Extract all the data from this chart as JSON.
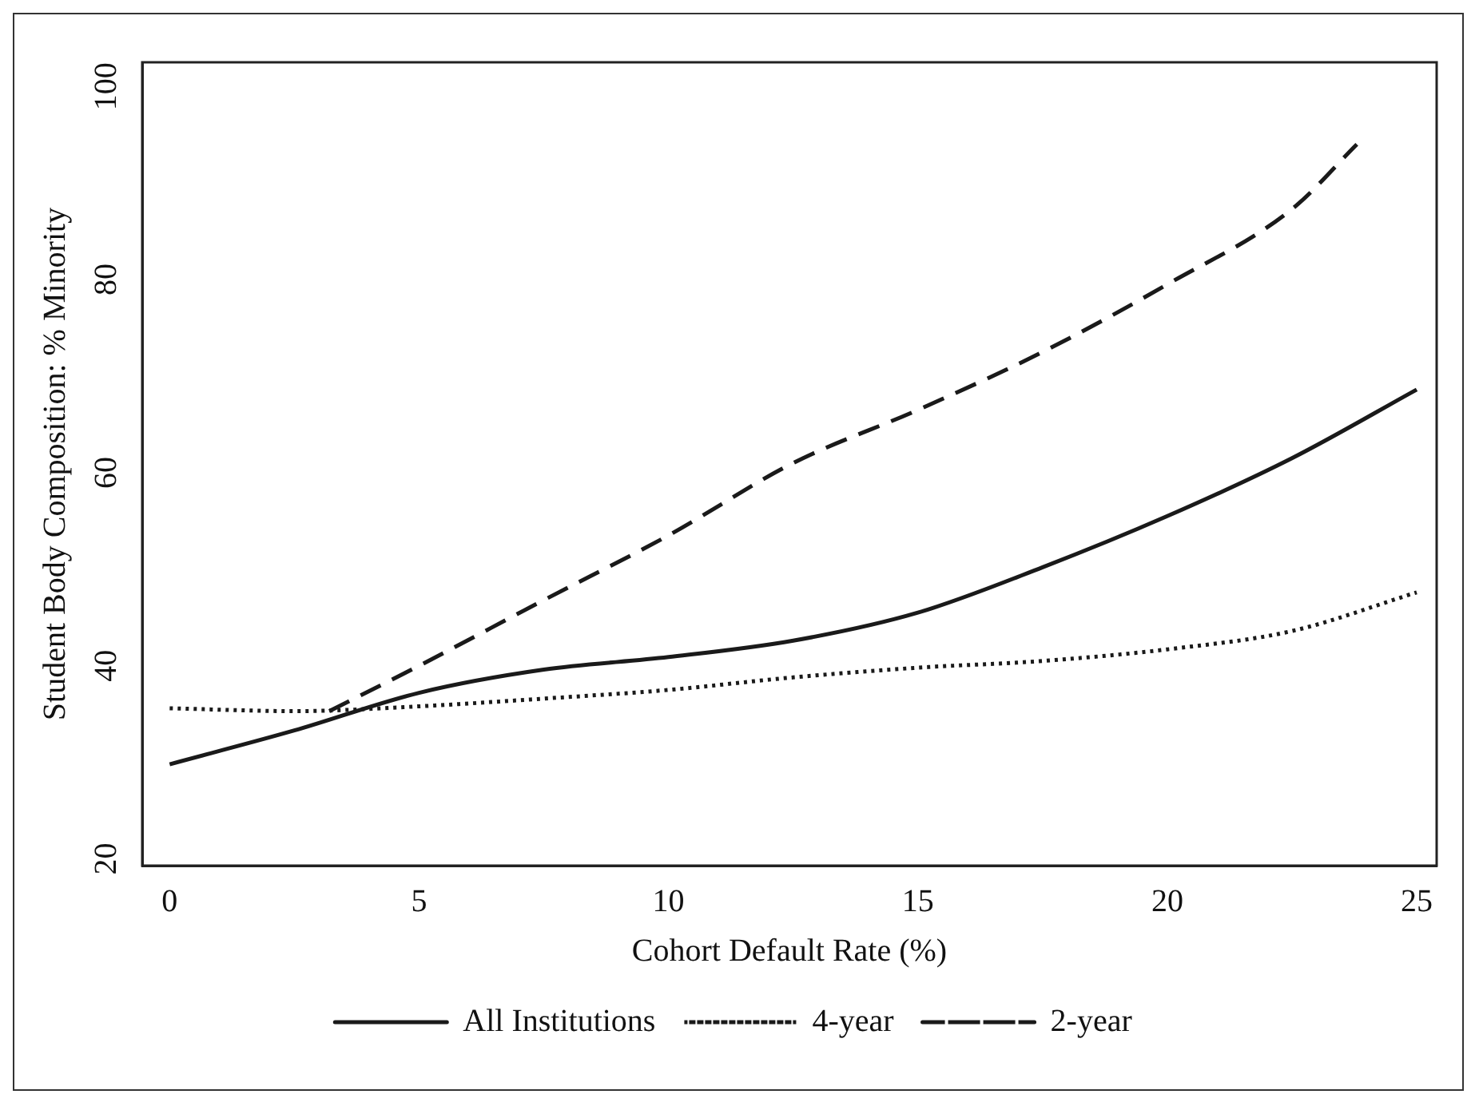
{
  "chart_data": {
    "type": "line",
    "xlabel": "Cohort Default Rate (%)",
    "ylabel": "Student Body Composition: % Minority",
    "xlim": [
      -0.55,
      25.4
    ],
    "xticks": [
      0,
      5,
      10,
      15,
      20,
      25
    ],
    "ylim": [
      19.3,
      102.5
    ],
    "yticks": [
      20,
      40,
      60,
      80,
      100
    ],
    "grid": false,
    "legend": "bottom",
    "marker": "none",
    "series": [
      {
        "name": "All Institutions",
        "color": "#1a1a1a",
        "line_style": "solid",
        "x": [
          0,
          2.5,
          5,
          7.5,
          10,
          12.5,
          15,
          17.5,
          20,
          22.5,
          25
        ],
        "values": [
          29.8,
          33.3,
          37.2,
          39.6,
          40.9,
          42.6,
          45.5,
          50.2,
          55.5,
          61.5,
          68.6
        ]
      },
      {
        "name": "4-year",
        "color": "#1a1a1a",
        "line_style": "dotted",
        "x": [
          0,
          2.5,
          5,
          7.5,
          10,
          12.5,
          15,
          17.5,
          20,
          22.5,
          25
        ],
        "values": [
          35.6,
          35.3,
          35.8,
          36.6,
          37.5,
          38.8,
          39.8,
          40.5,
          41.7,
          43.6,
          47.6
        ]
      },
      {
        "name": "2-year",
        "color": "#1a1a1a",
        "line_style": "dashed",
        "x": [
          3.2,
          5,
          7.5,
          10,
          12.5,
          15,
          17.5,
          20,
          22.5,
          23.8
        ],
        "values": [
          35.3,
          40,
          46.8,
          53.5,
          61,
          66.5,
          72.5,
          79.5,
          87.3,
          94
        ]
      }
    ]
  }
}
